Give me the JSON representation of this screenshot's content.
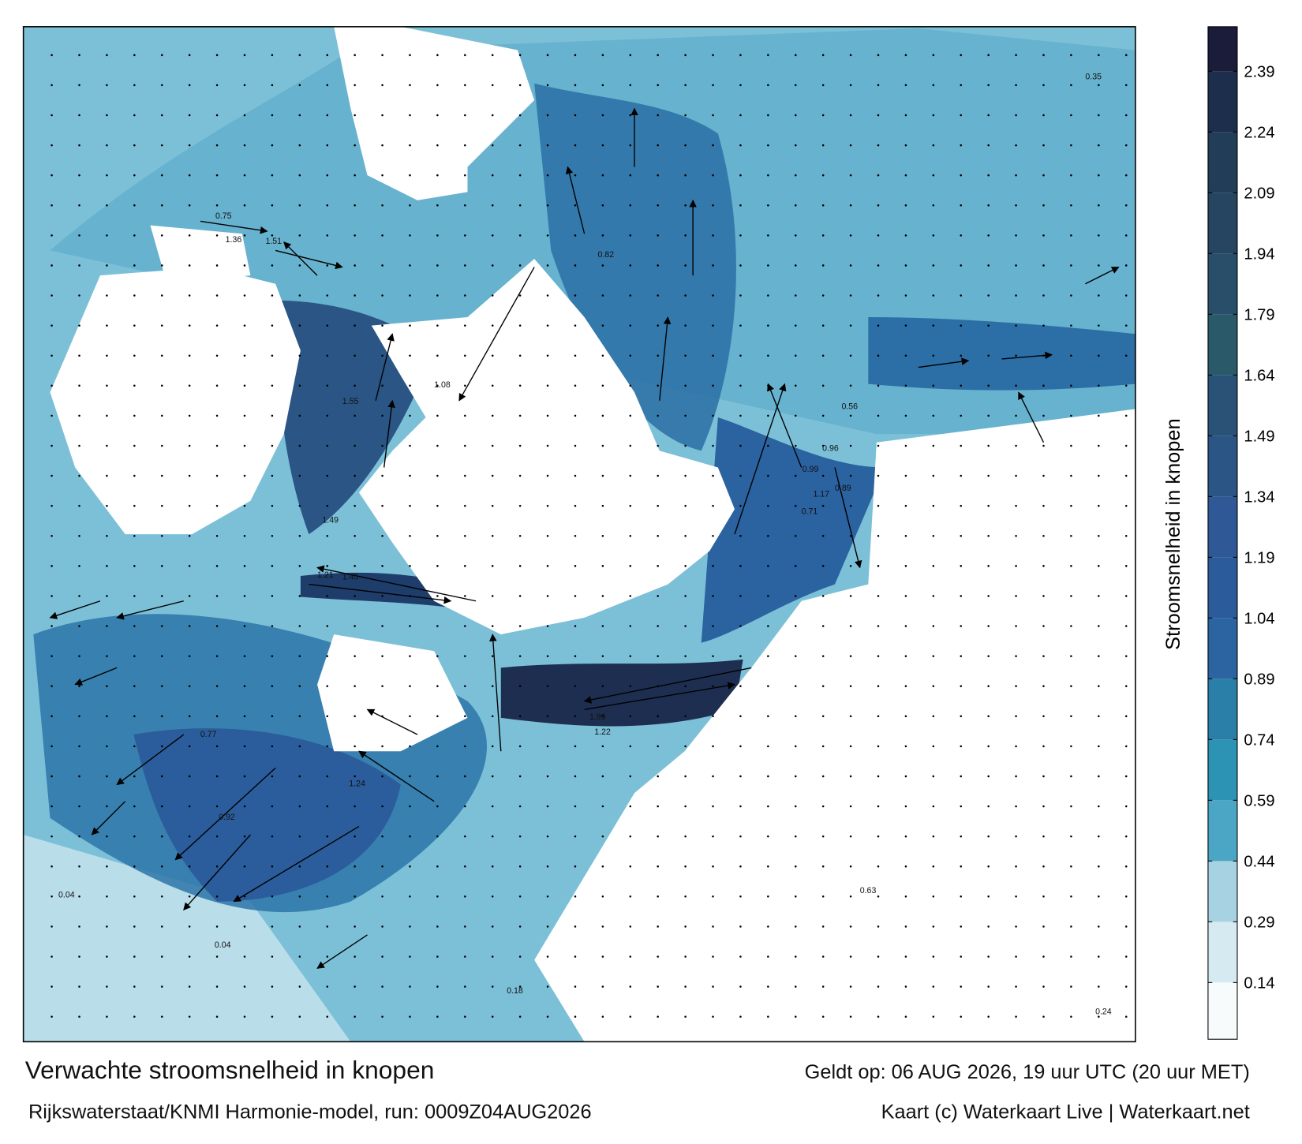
{
  "map": {
    "title": "Verwachte stroomsnelheid in knopen",
    "source": "Rijkswaterstaat/KNMI Harmonie-model, run: 0009Z04AUG2026",
    "valid": "Geldt op: 06 AUG 2026, 19 uur UTC (20 uur MET)",
    "credit": "Kaart (c) Waterkaart Live | Waterkaart.net",
    "labels": [
      "0.75",
      "1.36",
      "1.51",
      "0.82",
      "1.55",
      "1.08",
      "1.21",
      "1.45",
      "0.89",
      "0.96",
      "1.17",
      "0.56",
      "0.63",
      "0.71",
      "1.49",
      "1.99",
      "1.22",
      "0.92",
      "1.24",
      "0.35",
      "0.24",
      "0.04",
      "0.18",
      "0.04",
      "0.99",
      "0.77"
    ]
  },
  "colorbar": {
    "label": "Stroomsnelheid in knopen",
    "lim": [
      0,
      2.5
    ],
    "ticks": [
      0.14,
      0.29,
      0.44,
      0.59,
      0.74,
      0.89,
      1.04,
      1.19,
      1.34,
      1.49,
      1.64,
      1.79,
      1.94,
      2.09,
      2.24,
      2.39
    ],
    "colors": [
      "#f7fbfc",
      "#d6eaf1",
      "#a6d2e1",
      "#4aa6c4",
      "#2d93b5",
      "#2a7fa8",
      "#2b64a0",
      "#2c5b9c",
      "#2e5896",
      "#2a5585",
      "#2a5277",
      "#2a5a6a",
      "#294e6a",
      "#264560",
      "#223d58",
      "#1d2e4c",
      "#1a1c3a"
    ]
  }
}
